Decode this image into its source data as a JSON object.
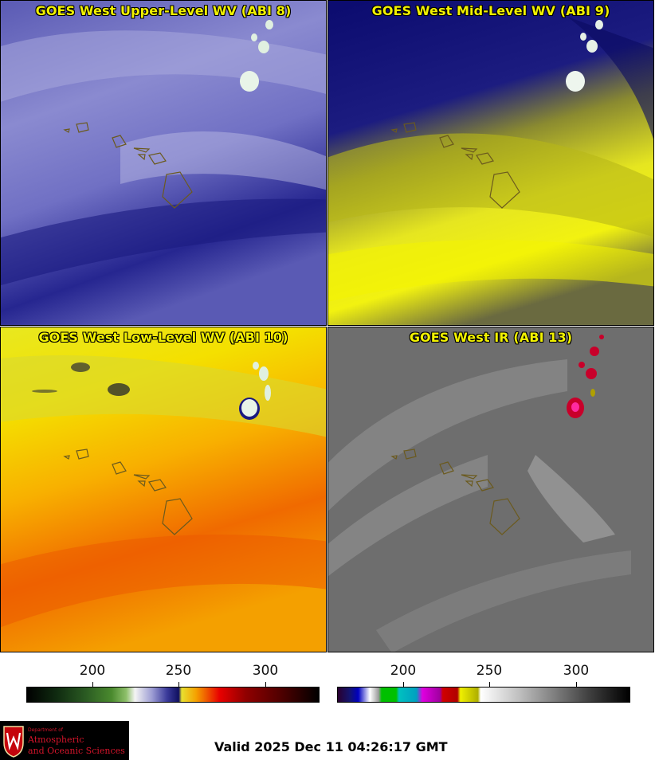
{
  "panels": {
    "upper": {
      "title": "GOES West Upper-Level WV (ABI 8)"
    },
    "mid": {
      "title": "GOES West Mid-Level WV (ABI 9)"
    },
    "low": {
      "title": "GOES West Low-Level WV (ABI 10)"
    },
    "ir": {
      "title": "GOES West IR (ABI 13)"
    }
  },
  "colorbars": {
    "left": {
      "ticks": [
        "200",
        "250",
        "300"
      ]
    },
    "right": {
      "ticks": [
        "200",
        "250",
        "300"
      ]
    }
  },
  "logo": {
    "department": "Department of",
    "line1": "Atmospheric",
    "line2": "and Oceanic Sciences"
  },
  "valid_time": "Valid 2025 Dec 11 04:26:17 GMT"
}
